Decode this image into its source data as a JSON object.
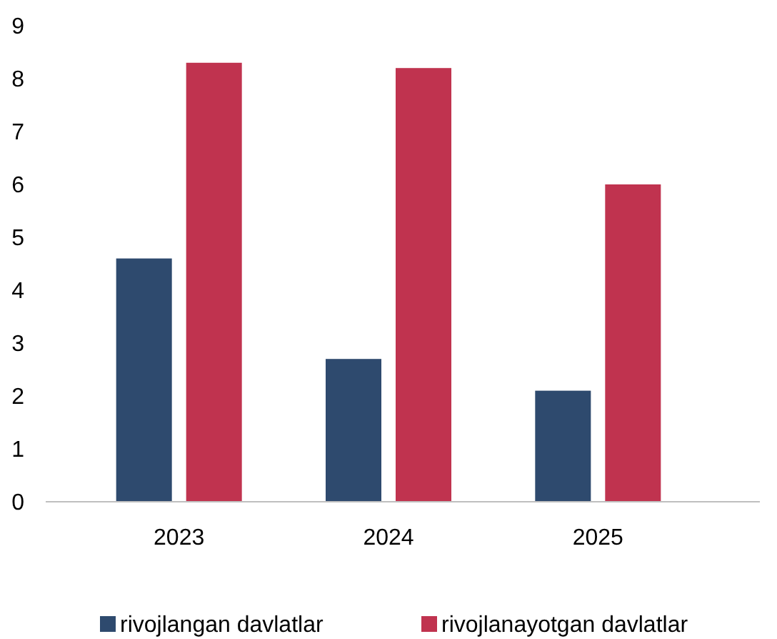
{
  "chart_data": {
    "type": "bar",
    "categories": [
      "2023",
      "2024",
      "2025"
    ],
    "series": [
      {
        "name": "rivojlangan davlatlar",
        "color": "#2e4a6e",
        "values": [
          4.6,
          2.7,
          2.1
        ]
      },
      {
        "name": "rivojlanayotgan davlatlar",
        "color": "#c0334f",
        "values": [
          8.3,
          8.2,
          6.0
        ]
      }
    ],
    "ylim": [
      0,
      9
    ],
    "yticks": [
      0,
      1,
      2,
      3,
      4,
      5,
      6,
      7,
      8,
      9
    ],
    "grid": false,
    "legend": "bottom"
  }
}
